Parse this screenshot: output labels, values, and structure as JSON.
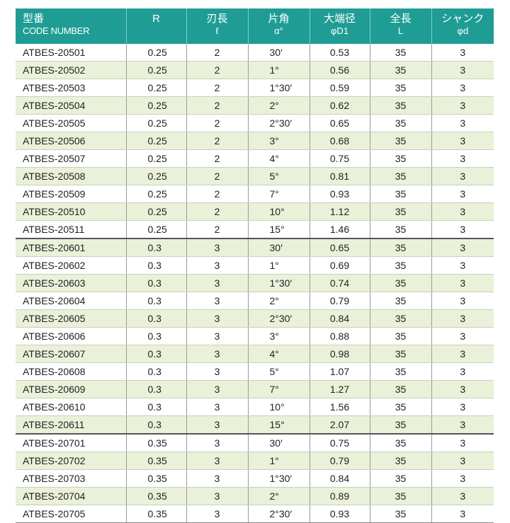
{
  "table": {
    "header": [
      [
        "型番",
        "CODE NUMBER"
      ],
      [
        "R"
      ],
      [
        "刃長",
        "ℓ"
      ],
      [
        "片角",
        "α°"
      ],
      [
        "大端径",
        "φD1"
      ],
      [
        "全長",
        "L"
      ],
      [
        "シャンク",
        "φd"
      ]
    ],
    "rows": [
      [
        "ATBES-20501",
        0.25,
        2,
        "30′",
        0.53,
        35,
        3
      ],
      [
        "ATBES-20502",
        0.25,
        2,
        "1°",
        0.56,
        35,
        3
      ],
      [
        "ATBES-20503",
        0.25,
        2,
        "1°30′",
        0.59,
        35,
        3
      ],
      [
        "ATBES-20504",
        0.25,
        2,
        "2°",
        0.62,
        35,
        3
      ],
      [
        "ATBES-20505",
        0.25,
        2,
        "2°30′",
        0.65,
        35,
        3
      ],
      [
        "ATBES-20506",
        0.25,
        2,
        "3°",
        0.68,
        35,
        3
      ],
      [
        "ATBES-20507",
        0.25,
        2,
        "4°",
        0.75,
        35,
        3
      ],
      [
        "ATBES-20508",
        0.25,
        2,
        "5°",
        0.81,
        35,
        3
      ],
      [
        "ATBES-20509",
        0.25,
        2,
        "7°",
        0.93,
        35,
        3
      ],
      [
        "ATBES-20510",
        0.25,
        2,
        "10°",
        1.12,
        35,
        3
      ],
      [
        "ATBES-20511",
        0.25,
        2,
        "15°",
        1.46,
        35,
        3
      ],
      [
        "ATBES-20601",
        0.3,
        3,
        "30′",
        0.65,
        35,
        3
      ],
      [
        "ATBES-20602",
        0.3,
        3,
        "1°",
        0.69,
        35,
        3
      ],
      [
        "ATBES-20603",
        0.3,
        3,
        "1°30′",
        0.74,
        35,
        3
      ],
      [
        "ATBES-20604",
        0.3,
        3,
        "2°",
        0.79,
        35,
        3
      ],
      [
        "ATBES-20605",
        0.3,
        3,
        "2°30′",
        0.84,
        35,
        3
      ],
      [
        "ATBES-20606",
        0.3,
        3,
        "3°",
        0.88,
        35,
        3
      ],
      [
        "ATBES-20607",
        0.3,
        3,
        "4°",
        0.98,
        35,
        3
      ],
      [
        "ATBES-20608",
        0.3,
        3,
        "5°",
        1.07,
        35,
        3
      ],
      [
        "ATBES-20609",
        0.3,
        3,
        "7°",
        1.27,
        35,
        3
      ],
      [
        "ATBES-20610",
        0.3,
        3,
        "10°",
        1.56,
        35,
        3
      ],
      [
        "ATBES-20611",
        0.3,
        3,
        "15°",
        2.07,
        35,
        3
      ],
      [
        "ATBES-20701",
        0.35,
        3,
        "30′",
        0.75,
        35,
        3
      ],
      [
        "ATBES-20702",
        0.35,
        3,
        "1°",
        0.79,
        35,
        3
      ],
      [
        "ATBES-20703",
        0.35,
        3,
        "1°30′",
        0.84,
        35,
        3
      ],
      [
        "ATBES-20704",
        0.35,
        3,
        "2°",
        0.89,
        35,
        3
      ],
      [
        "ATBES-20705",
        0.35,
        3,
        "2°30′",
        0.93,
        35,
        3
      ]
    ]
  }
}
